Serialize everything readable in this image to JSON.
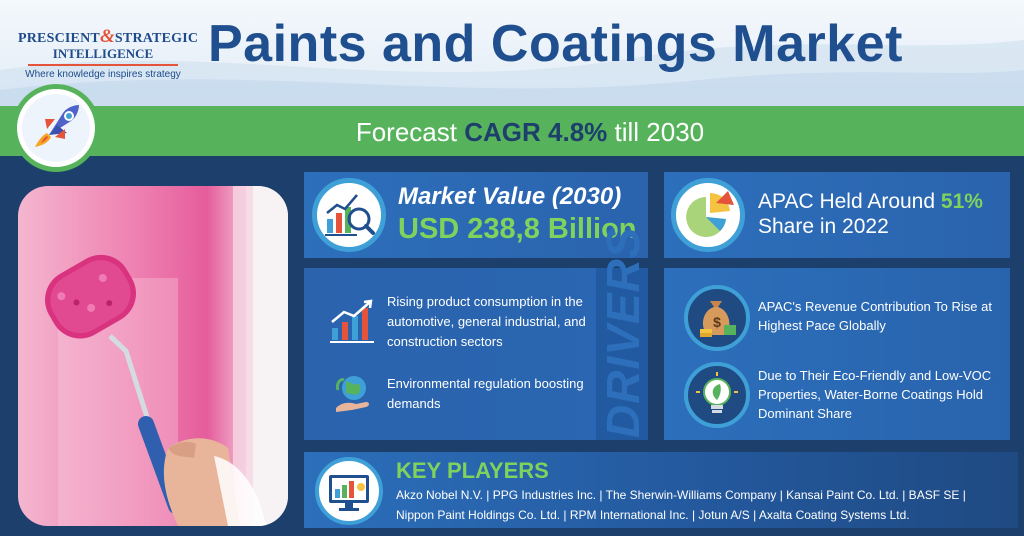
{
  "logo": {
    "line1_left": "PRESCIENT",
    "ampersand": "&",
    "line1_right": "STRATEGIC",
    "line2": "INTELLIGENCE",
    "tagline": "Where knowledge inspires strategy"
  },
  "title": "Paints and Coatings Market",
  "banner": {
    "prefix": "Forecast",
    "highlight": "CAGR 4.8%",
    "suffix": "till 2030"
  },
  "market_value": {
    "title": "Market Value (2030)",
    "value": "USD 238,8 Billion"
  },
  "apac_share": {
    "prefix": "APAC Held Around",
    "highlight": "51%",
    "line2": "Share in 2022"
  },
  "drivers": {
    "label": "DRIVERS",
    "items": [
      {
        "text": "Rising product consumption in the automotive, general industrial, and construction sectors",
        "icon": "growth-chart-icon"
      },
      {
        "text": "Environmental regulation boosting demands",
        "icon": "eco-globe-hand-icon"
      }
    ]
  },
  "opportunities": {
    "items": [
      {
        "text": "APAC's Revenue Contribution To Rise at Highest Pace Globally",
        "icon": "money-bag-icon"
      },
      {
        "text": "Due to Their Eco-Friendly and Low-VOC Properties, Water-Borne Coatings Hold Dominant Share",
        "icon": "eco-bulb-icon"
      }
    ]
  },
  "key_players": {
    "title": "KEY PLAYERS",
    "line1": "Akzo Nobel N.V. | PPG Industries Inc. | The Sherwin-Williams Company | Kansai Paint Co. Ltd. | BASF SE |",
    "line2": "Nippon Paint Holdings Co. Ltd. | RPM International Inc. | Jotun A/S | Axalta Coating Systems Ltd."
  },
  "colors": {
    "navy": "#1c3f6b",
    "card_blue": "#2c6fbb",
    "green": "#57b35b",
    "light_green": "#7fd25c",
    "title_blue": "#1f4f8e",
    "accent_red": "#e5543a"
  }
}
